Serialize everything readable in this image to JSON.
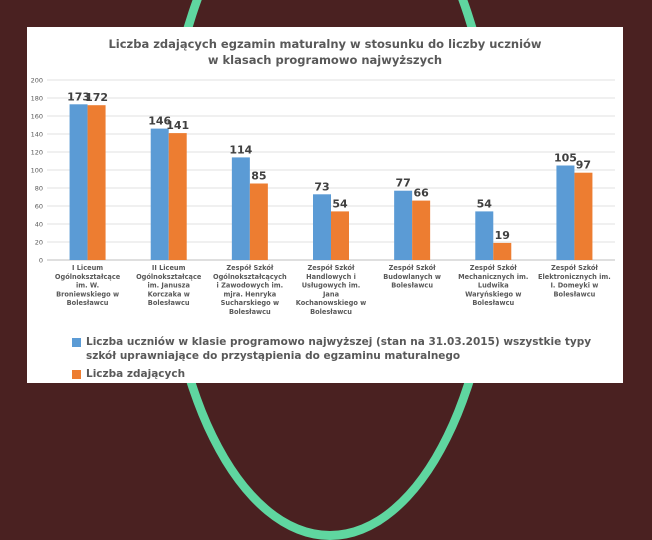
{
  "chart_data": {
    "type": "bar",
    "title_line1": "Liczba zdających egzamin maturalny  w stosunku do liczby uczniów",
    "title_line2": "w klasach programowo najwyższych",
    "ylim": [
      0,
      200
    ],
    "yticks": [
      "0",
      "20",
      "40",
      "60",
      "80",
      "100",
      "120",
      "140",
      "160",
      "180",
      "200"
    ],
    "grid": true,
    "legend_position": "bottom",
    "categories": [
      [
        "I Liceum",
        "Ogólnokształcące",
        "im. W.",
        "Broniewskiego w",
        "Bolesławcu"
      ],
      [
        "II Liceum",
        "Ogólnokształcące",
        "im. Janusza",
        "Korczaka w",
        "Bolesławcu"
      ],
      [
        "Zespół Szkół",
        "Ogólnokształcących",
        "i Zawodowych im.",
        "mjra. Henryka",
        "Sucharskiego w",
        "Bolesławcu"
      ],
      [
        "Zespół Szkół",
        "Handlowych i",
        "Usługowych im.",
        "Jana",
        "Kochanowskiego w",
        "Bolesławcu"
      ],
      [
        "Zespół Szkół",
        "Budowlanych w",
        "Bolesławcu"
      ],
      [
        "Zespół Szkół",
        "Mechanicznych im.",
        "Ludwika",
        "Waryńskiego w",
        "Bolesławcu"
      ],
      [
        "Zespół Szkół",
        "Elektronicznych im.",
        "I. Domeyki w",
        "Bolesławcu"
      ]
    ],
    "series": [
      {
        "name": "Liczba uczniów w klasie programowo najwyższej (stan na 31.03.2015) wszystkie typy szkół uprawniające do przystąpienia do egzaminu maturalnego",
        "color": "#5b9bd5",
        "values": [
          173,
          146,
          114,
          73,
          77,
          54,
          105
        ],
        "labels": [
          "173",
          "146",
          "114",
          "73",
          "77",
          "54",
          "105"
        ]
      },
      {
        "name": "Liczba zdających",
        "color": "#ed7d31",
        "values": [
          172,
          141,
          85,
          54,
          66,
          19,
          97
        ],
        "labels": [
          "172",
          "141",
          "85",
          "54",
          "66",
          "19",
          "97"
        ]
      }
    ]
  }
}
